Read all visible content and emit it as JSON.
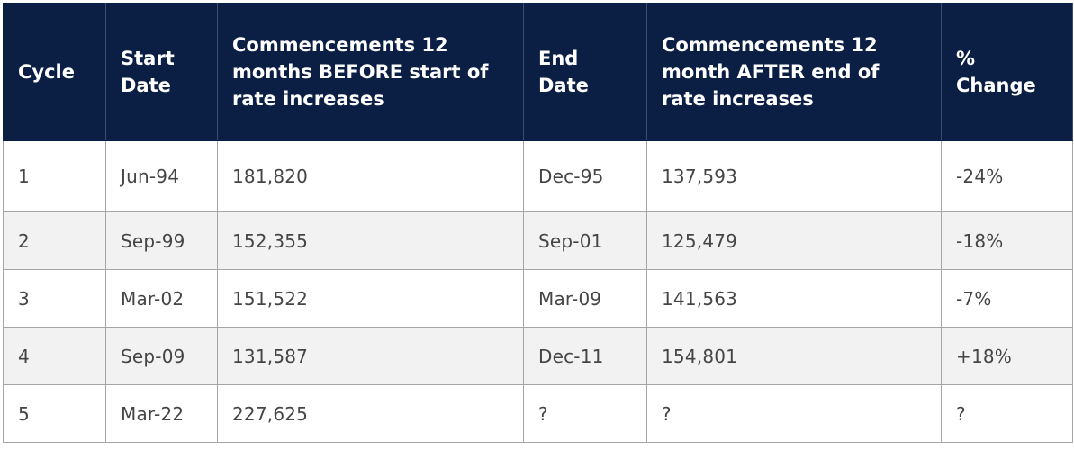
{
  "table": {
    "headers": [
      "Cycle",
      "Start Date",
      "Commencements 12 months BEFORE start of rate increases",
      "End Date",
      "Commencements 12 month AFTER end of rate increases",
      "% Change"
    ],
    "rows": [
      [
        "1",
        "Jun-94",
        "181,820",
        "Dec-95",
        "137,593",
        "-24%"
      ],
      [
        "2",
        "Sep-99",
        "152,355",
        "Sep-01",
        "125,479",
        "-18%"
      ],
      [
        "3",
        "Mar-02",
        "151,522",
        "Mar-09",
        "141,563",
        "-7%"
      ],
      [
        "4",
        "Sep-09",
        "131,587",
        "Dec-11",
        "154,801",
        "+18%"
      ],
      [
        "5",
        "Mar-22",
        "227,625",
        "?",
        "?",
        "?"
      ]
    ]
  }
}
